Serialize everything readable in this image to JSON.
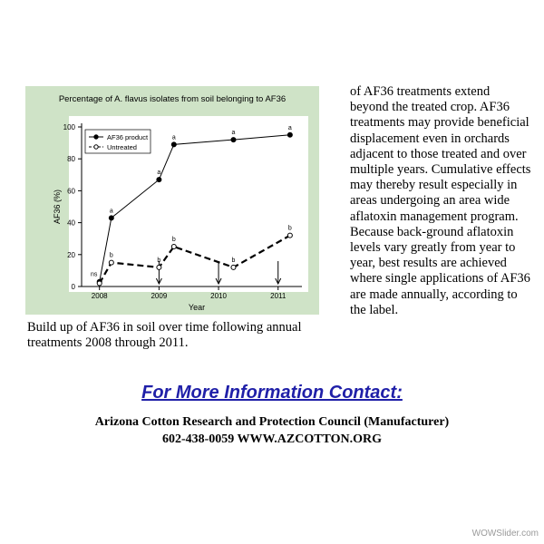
{
  "chart_data": {
    "type": "line",
    "title": "Percentage of A. flavus isolates from soil belonging to AF36",
    "xlabel": "Year",
    "ylabel": "AF36 (%)",
    "xlim": [
      2007.7,
      2011.4
    ],
    "ylim": [
      0,
      100
    ],
    "x_ticks": [
      "2008",
      "2009",
      "2010",
      "2011"
    ],
    "y_ticks": [
      "0",
      "20",
      "40",
      "60",
      "80",
      "100"
    ],
    "legend_position": "top-left",
    "series": [
      {
        "name": "AF36 product",
        "style": "solid-filled-circle",
        "x": [
          2008.0,
          2008.2,
          2009.0,
          2009.25,
          2010.25,
          2011.2
        ],
        "y": [
          3,
          43,
          67,
          89,
          92,
          95
        ],
        "labels": [
          "ns",
          "a",
          "a",
          "a",
          "a",
          "a"
        ]
      },
      {
        "name": "Untreated",
        "style": "dashed-open-circle",
        "x": [
          2008.0,
          2008.2,
          2009.0,
          2009.25,
          2010.25,
          2011.2
        ],
        "y": [
          2,
          15,
          12,
          25,
          12,
          32
        ],
        "labels": [
          "",
          "b",
          "b",
          "b",
          "b",
          "b"
        ]
      }
    ],
    "arrows_at_x": [
      2009.0,
      2010.0,
      2011.0
    ]
  },
  "caption": "Build up of AF36 in soil over time following annual treatments 2008 through 2011.",
  "body_text": "of AF36 treatments extend beyond the treated crop. AF36 treatments may provide beneficial displacement even in orchards adjacent to those treated and over multiple years.  Cumulative effects may thereby result especially in areas undergoing an area wide aflatoxin management program. Because back-ground aflatoxin levels vary greatly from year to year, best results are achieved where single applications of AF36 are made annually, according to the label.",
  "contact_heading": "For More Information Contact:",
  "organization": "Arizona Cotton Research and Protection Council  (Manufacturer)",
  "phone_web": "602-438-0059  WWW.AZCOTTON.ORG",
  "watermark": "WOWSlider.com",
  "colors": {
    "chart_background": "#cfe3c7",
    "heading_blue": "#1f1fa8"
  }
}
